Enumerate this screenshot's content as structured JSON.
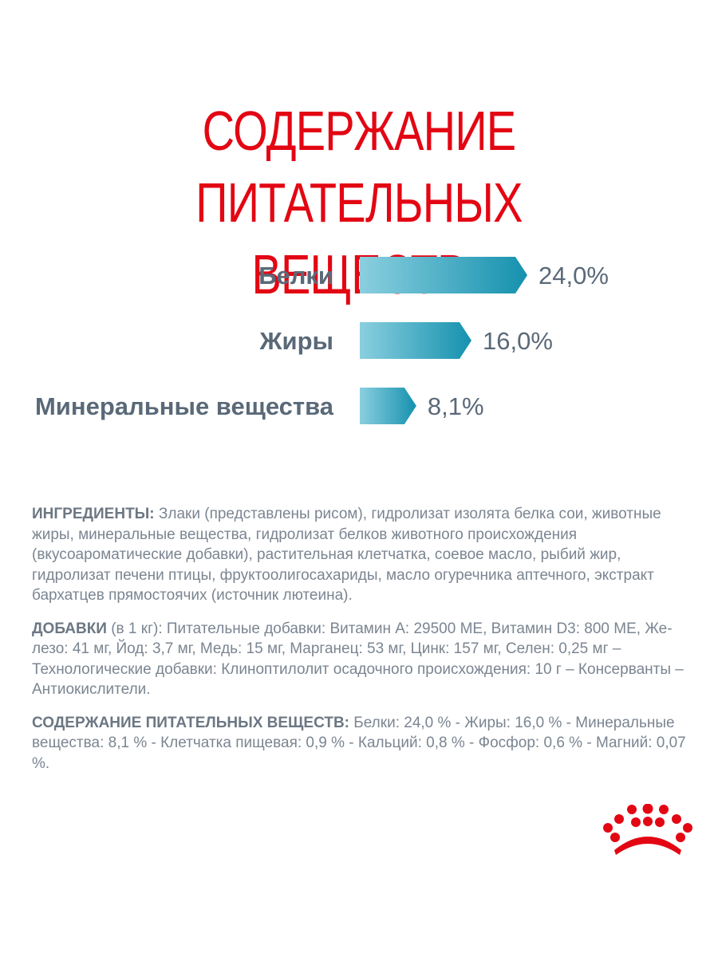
{
  "title": {
    "line1": "СОДЕРЖАНИЕ ПИТАТЕЛЬНЫХ",
    "line2": "ВЕЩЕСТВ"
  },
  "chart_data": {
    "type": "bar",
    "orientation": "horizontal",
    "categories": [
      "Белки",
      "Жиры",
      "Минеральные вещества"
    ],
    "values": [
      24.0,
      16.0,
      8.1
    ],
    "value_labels": [
      "24,0%",
      "16,0%",
      "8,1%"
    ],
    "unit": "%",
    "colors": {
      "gradient_start": "#8acfdf",
      "gradient_end": "#1591ae",
      "label": "#5a6978"
    }
  },
  "paragraphs": {
    "ingredients": {
      "label": "ИНГРЕДИЕНТЫ:",
      "text": " Злаки (представлены рисом), гидролизат изолята белка сои, животные жиры, минеральные вещества, гидролизат белков животного происхождения (вкусоароматические добавки), растительная клетчатка, соевое масло, рыбий жир, гидролизат печени птицы, фруктоолигосахариды, масло огуречника аптечного, экстракт бархатцев прямостоячих (источник лютеина)."
    },
    "additives": {
      "label": "ДОБАВКИ",
      "text": " (в 1 кг): Питательные добавки: Витамин A: 29500 МЕ, Витамин D3: 800 МЕ, Же-лезо: 41 мг, Йод: 3,7 мг, Медь: 15 мг, Марганец: 53 мг, Цинк: 157 мг, Селен: 0,25 мг – Технологические добавки: Клиноптилолит осадочного происхождения: 10 г – Консерванты – Антиокислители."
    },
    "nutrients": {
      "label": "СОДЕРЖАНИЕ ПИТАТЕЛЬНЫХ ВЕЩЕСТВ:",
      "text": " Белки: 24,0 % - Жиры: 16,0 % - Минеральные вещества: 8,1 % - Клетчатка пищевая: 0,9 % - Кальций: 0,8 % - Фосфор: 0,6 % - Магний: 0,07 %."
    }
  },
  "logo": {
    "icon": "crown-icon",
    "color": "#e30613"
  }
}
